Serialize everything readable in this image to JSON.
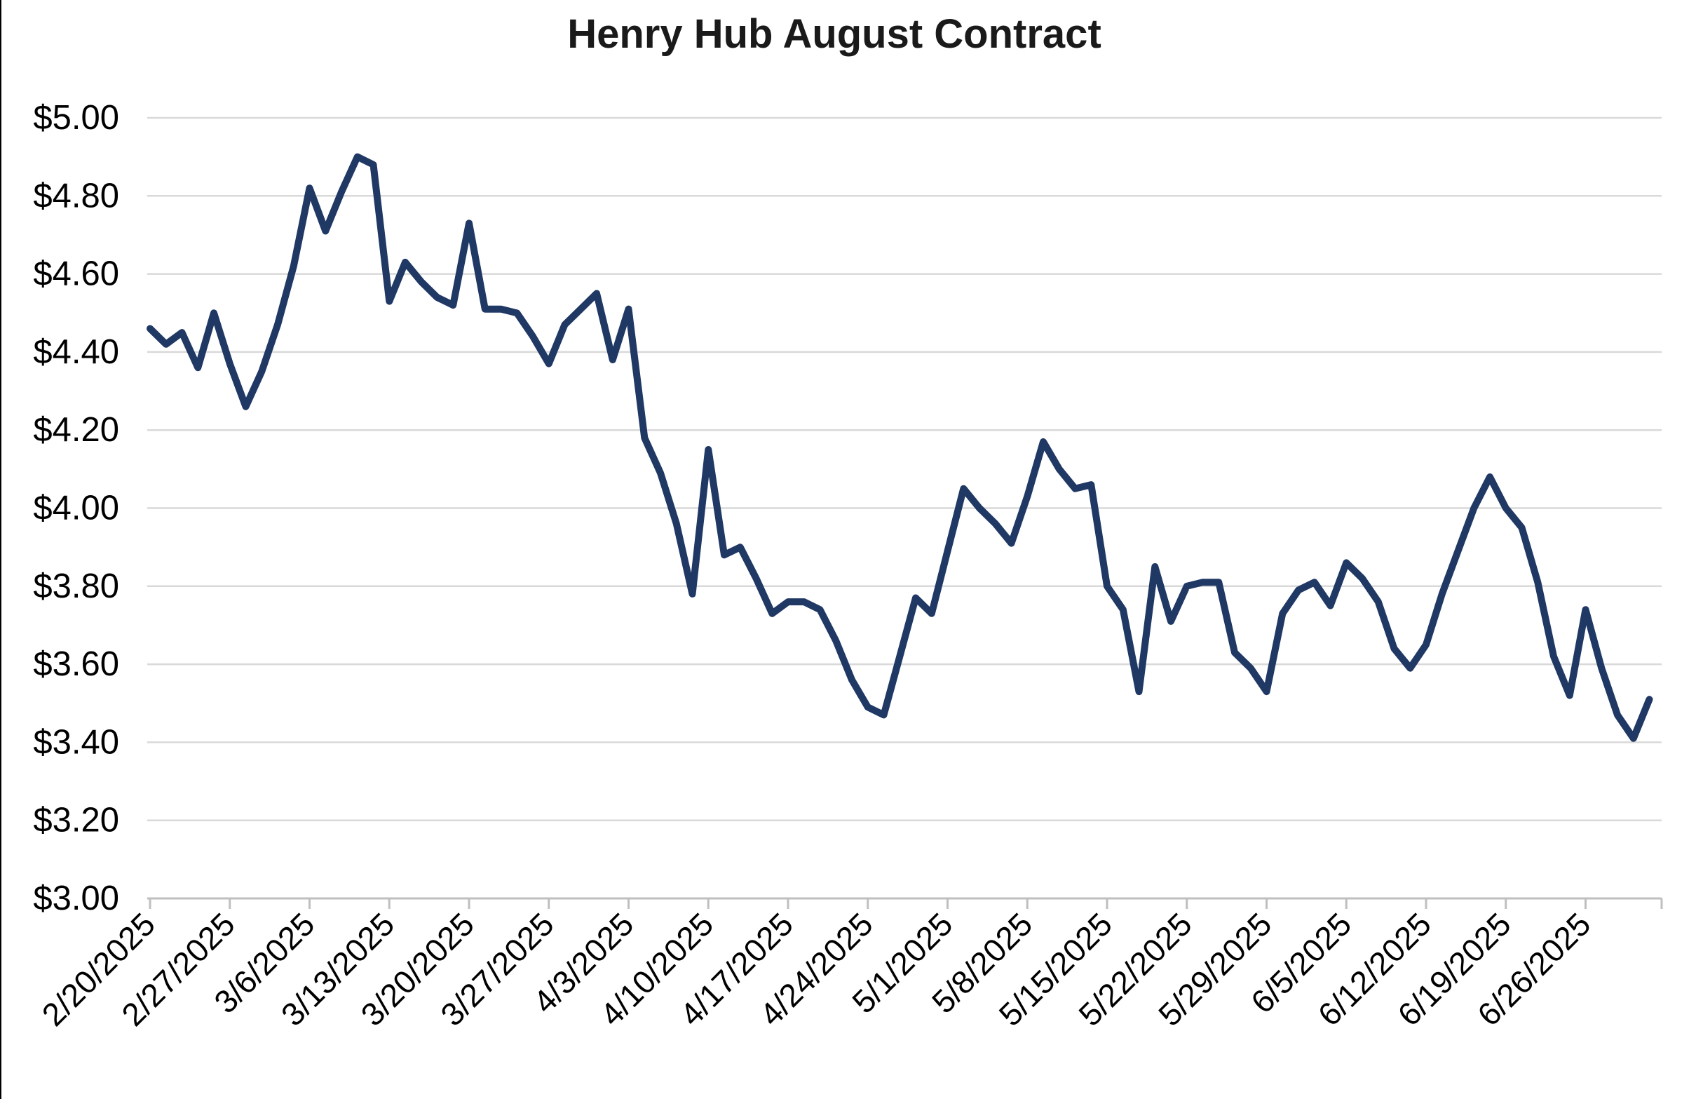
{
  "page": {
    "left_border_color": "#000000",
    "background_color": "#ffffff"
  },
  "chart_data": {
    "type": "line",
    "title": "Henry Hub August Contract",
    "series_name": "Henry Hub August Contract",
    "legend": "none",
    "grid": "horizontal",
    "ylim": [
      3.0,
      5.0
    ],
    "ytick_step": 0.2,
    "ytick_labels": [
      "$5.00",
      "$4.80",
      "$4.60",
      "$4.40",
      "$4.20",
      "$4.00",
      "$3.80",
      "$3.60",
      "$3.40",
      "$3.20",
      "$3.00"
    ],
    "xtick_labels": [
      "2/20/2025",
      "2/27/2025",
      "3/6/2025",
      "3/13/2025",
      "3/20/2025",
      "3/27/2025",
      "4/3/2025",
      "4/10/2025",
      "4/17/2025",
      "4/24/2025",
      "5/1/2025",
      "5/8/2025",
      "5/15/2025",
      "5/22/2025",
      "5/29/2025",
      "6/5/2025",
      "6/12/2025",
      "6/19/2025",
      "6/26/2025"
    ],
    "xtick_interval_points": 5,
    "dates": [
      "2/20/2025",
      "2/21/2025",
      "2/24/2025",
      "2/25/2025",
      "2/26/2025",
      "2/27/2025",
      "2/28/2025",
      "3/3/2025",
      "3/4/2025",
      "3/5/2025",
      "3/6/2025",
      "3/7/2025",
      "3/10/2025",
      "3/11/2025",
      "3/12/2025",
      "3/13/2025",
      "3/14/2025",
      "3/17/2025",
      "3/18/2025",
      "3/19/2025",
      "3/20/2025",
      "3/21/2025",
      "3/24/2025",
      "3/25/2025",
      "3/26/2025",
      "3/27/2025",
      "3/28/2025",
      "3/31/2025",
      "4/1/2025",
      "4/2/2025",
      "4/3/2025",
      "4/4/2025",
      "4/7/2025",
      "4/8/2025",
      "4/9/2025",
      "4/10/2025",
      "4/11/2025",
      "4/14/2025",
      "4/15/2025",
      "4/16/2025",
      "4/17/2025",
      "4/18/2025",
      "4/21/2025",
      "4/22/2025",
      "4/23/2025",
      "4/24/2025",
      "4/25/2025",
      "4/28/2025",
      "4/29/2025",
      "4/30/2025",
      "5/1/2025",
      "5/2/2025",
      "5/5/2025",
      "5/6/2025",
      "5/7/2025",
      "5/8/2025",
      "5/9/2025",
      "5/12/2025",
      "5/13/2025",
      "5/14/2025",
      "5/15/2025",
      "5/16/2025",
      "5/19/2025",
      "5/20/2025",
      "5/21/2025",
      "5/22/2025",
      "5/23/2025",
      "5/26/2025",
      "5/27/2025",
      "5/28/2025",
      "5/29/2025",
      "5/30/2025",
      "6/2/2025",
      "6/3/2025",
      "6/4/2025",
      "6/5/2025",
      "6/6/2025",
      "6/9/2025",
      "6/10/2025",
      "6/11/2025",
      "6/12/2025",
      "6/13/2025",
      "6/16/2025",
      "6/17/2025",
      "6/18/2025",
      "6/19/2025",
      "6/20/2025",
      "6/23/2025",
      "6/24/2025",
      "6/25/2025",
      "6/26/2025",
      "6/27/2025",
      "6/30/2025",
      "7/1/2025",
      "7/2/2025"
    ],
    "values": [
      4.46,
      4.42,
      4.45,
      4.36,
      4.5,
      4.37,
      4.26,
      4.35,
      4.47,
      4.62,
      4.82,
      4.71,
      4.81,
      4.9,
      4.88,
      4.53,
      4.63,
      4.58,
      4.54,
      4.52,
      4.73,
      4.51,
      4.51,
      4.5,
      4.44,
      4.37,
      4.47,
      4.51,
      4.55,
      4.38,
      4.51,
      4.18,
      4.09,
      3.96,
      3.78,
      4.15,
      3.88,
      3.9,
      3.82,
      3.73,
      3.76,
      3.76,
      3.74,
      3.66,
      3.56,
      3.49,
      3.47,
      3.62,
      3.77,
      3.73,
      3.89,
      4.05,
      4.0,
      3.96,
      3.91,
      4.03,
      4.17,
      4.1,
      4.05,
      4.06,
      3.8,
      3.74,
      3.53,
      3.85,
      3.71,
      3.8,
      3.81,
      3.81,
      3.63,
      3.59,
      3.53,
      3.73,
      3.79,
      3.81,
      3.75,
      3.86,
      3.82,
      3.76,
      3.64,
      3.59,
      3.65,
      3.78,
      3.89,
      4.0,
      4.08,
      4.0,
      3.95,
      3.81,
      3.62,
      3.52,
      3.74,
      3.59,
      3.47,
      3.41,
      3.51
    ],
    "line_color": "#1F3864",
    "line_width": 10,
    "gridline_color": "#D9D9D9",
    "axis_color": "#BFBFBF",
    "text_color": "#000000",
    "title_color": "#1a1a1a"
  }
}
